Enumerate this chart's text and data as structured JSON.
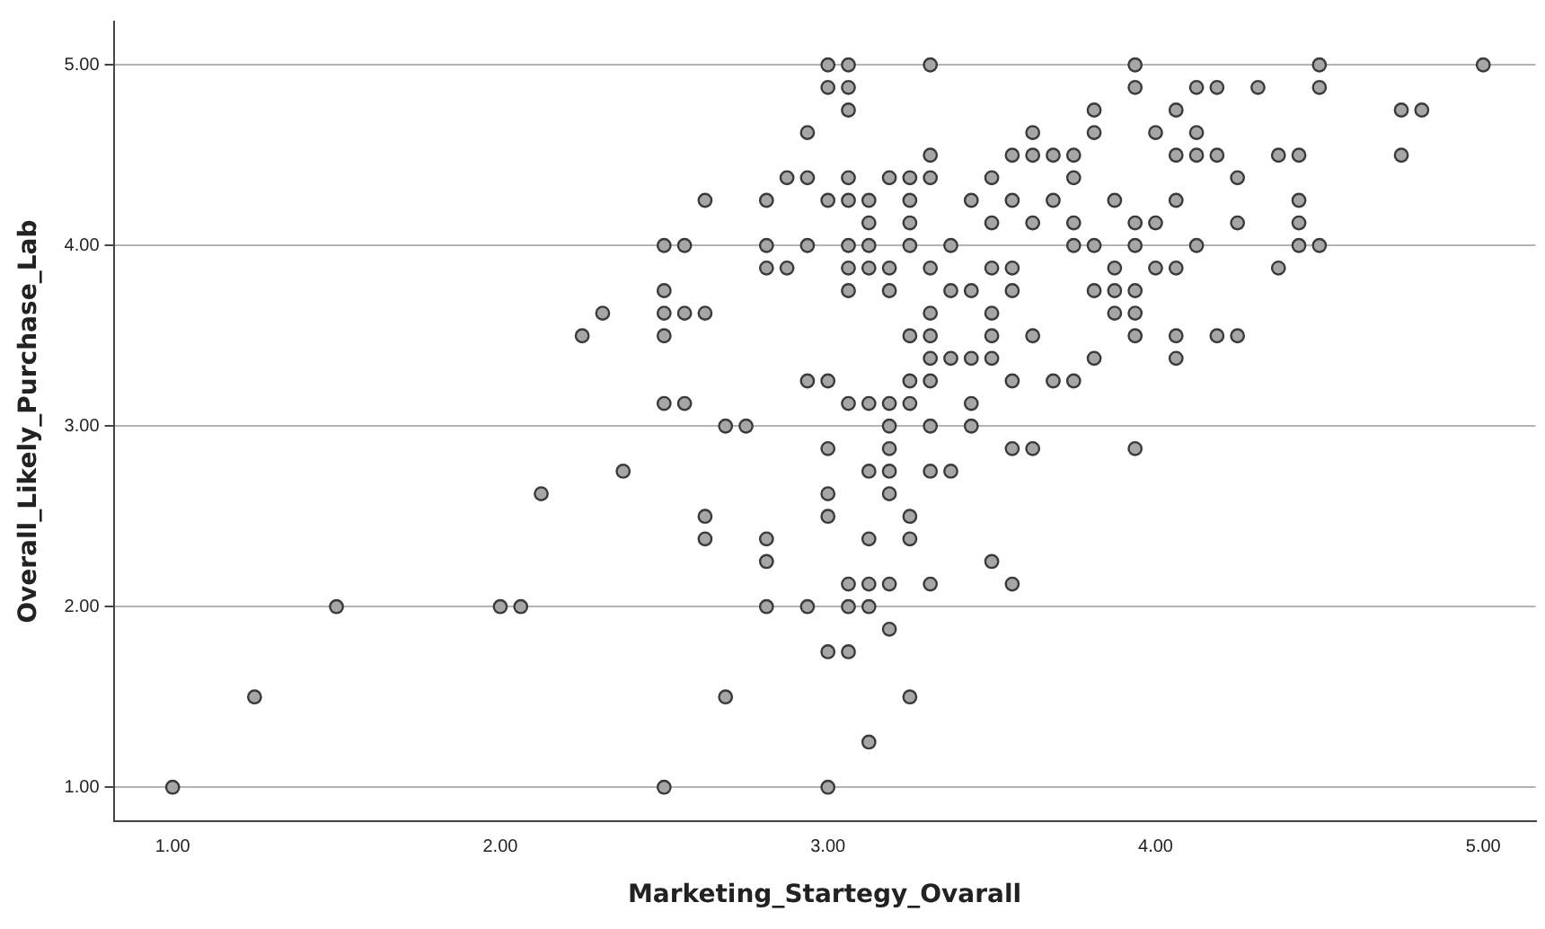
{
  "chart_data": {
    "type": "scatter",
    "xlabel": "Marketing_Startegy_Ovarall",
    "ylabel": "Overall_Likely_Purchase_Lab",
    "xlim": [
      0.82,
      5.16
    ],
    "ylim": [
      0.81,
      5.24
    ],
    "xticks": [
      {
        "value": 1,
        "label": "1.00"
      },
      {
        "value": 2,
        "label": "2.00"
      },
      {
        "value": 3,
        "label": "3.00"
      },
      {
        "value": 4,
        "label": "4.00"
      },
      {
        "value": 5,
        "label": "5.00"
      }
    ],
    "yticks": [
      {
        "value": 1,
        "label": "1.00"
      },
      {
        "value": 2,
        "label": "2.00"
      },
      {
        "value": 3,
        "label": "3.00"
      },
      {
        "value": 4,
        "label": "4.00"
      },
      {
        "value": 5,
        "label": "5.00"
      }
    ],
    "grid": "y",
    "legend": false,
    "marker": "circle",
    "series": [
      {
        "color": "#a6a6a6",
        "x": [
          1,
          1.25,
          1.5,
          2,
          2.0625,
          2.125,
          2.25,
          3,
          3.0625,
          3.3125,
          3,
          3.0625,
          3.0625,
          2.9375,
          3.3125,
          2.875,
          2.9375,
          3.0625,
          3.1875,
          3.25,
          3.3125,
          2.625,
          2.8125,
          3,
          3.0625,
          3.125,
          3.25,
          3.125,
          3.25,
          2.5,
          2.5625,
          2.8125,
          2.9375,
          3.0625,
          3.125,
          3.25,
          3.375,
          2.8125,
          2.875,
          3.0625,
          3.125,
          3.1875,
          3.3125,
          2.5,
          3.0625,
          3.1875,
          3.375,
          2.3125,
          2.5,
          2.5625,
          2.625,
          3.3125,
          2.5,
          3.25,
          3.3125,
          3.3125,
          3.375,
          2.9375,
          3,
          3.25,
          3.3125,
          2.5,
          2.5625,
          3.0625,
          3.125,
          3.1875,
          3.25,
          2.6875,
          2.75,
          3.1875,
          3.3125,
          3,
          3.1875,
          2.375,
          3.125,
          3.1875,
          3.3125,
          3.375,
          3,
          3.1875,
          2.625,
          3,
          3.25,
          2.625,
          2.8125,
          3.125,
          3.25,
          2.8125,
          3.0625,
          3.125,
          3.1875,
          3.3125,
          2.8125,
          2.9375,
          3.0625,
          3.125,
          3.1875,
          3,
          3.0625,
          2.6875,
          3.25,
          3.125,
          2.5,
          3,
          3.9375,
          3.9375,
          4.125,
          4.1875,
          4.3125,
          3.8125,
          4.0625,
          3.625,
          3.8125,
          4,
          4.125,
          3.5625,
          3.625,
          3.6875,
          3.75,
          4.0625,
          4.125,
          4.1875,
          4.375,
          3.5,
          3.75,
          4.25,
          3.4375,
          3.5625,
          3.6875,
          3.875,
          4.0625,
          3.5,
          3.625,
          3.75,
          3.9375,
          4,
          4.25,
          3.75,
          3.8125,
          3.9375,
          4.125,
          3.5,
          3.5625,
          3.875,
          4,
          4.0625,
          4.375,
          3.4375,
          3.5625,
          3.8125,
          3.875,
          3.9375,
          3.5,
          3.875,
          3.9375,
          3.5,
          3.625,
          3.9375,
          4.0625,
          4.1875,
          4.25,
          3.4375,
          3.5,
          3.8125,
          4.0625,
          3.5625,
          3.6875,
          3.75,
          3.4375,
          3.4375,
          3.5625,
          3.625,
          3.9375,
          3.5,
          3.5625,
          4.5,
          5,
          4.5,
          4.75,
          4.8125,
          4.4375,
          4.75,
          4.4375,
          4.4375,
          4.4375,
          4.5
        ],
        "values": [
          1,
          1.5,
          2,
          2,
          2,
          2.625,
          3.5,
          5,
          5,
          5,
          4.875,
          4.875,
          4.75,
          4.625,
          4.5,
          4.375,
          4.375,
          4.375,
          4.375,
          4.375,
          4.375,
          4.25,
          4.25,
          4.25,
          4.25,
          4.25,
          4.25,
          4.125,
          4.125,
          4,
          4,
          4,
          4,
          4,
          4,
          4,
          4,
          3.875,
          3.875,
          3.875,
          3.875,
          3.875,
          3.875,
          3.75,
          3.75,
          3.75,
          3.75,
          3.625,
          3.625,
          3.625,
          3.625,
          3.625,
          3.5,
          3.5,
          3.5,
          3.375,
          3.375,
          3.25,
          3.25,
          3.25,
          3.25,
          3.125,
          3.125,
          3.125,
          3.125,
          3.125,
          3.125,
          3,
          3,
          3,
          3,
          2.875,
          2.875,
          2.75,
          2.75,
          2.75,
          2.75,
          2.75,
          2.625,
          2.625,
          2.5,
          2.5,
          2.5,
          2.375,
          2.375,
          2.375,
          2.375,
          2.25,
          2.125,
          2.125,
          2.125,
          2.125,
          2,
          2,
          2,
          2,
          1.875,
          1.75,
          1.75,
          1.5,
          1.5,
          1.25,
          1,
          1,
          5,
          4.875,
          4.875,
          4.875,
          4.875,
          4.75,
          4.75,
          4.625,
          4.625,
          4.625,
          4.625,
          4.5,
          4.5,
          4.5,
          4.5,
          4.5,
          4.5,
          4.5,
          4.5,
          4.375,
          4.375,
          4.375,
          4.25,
          4.25,
          4.25,
          4.25,
          4.25,
          4.125,
          4.125,
          4.125,
          4.125,
          4.125,
          4.125,
          4,
          4,
          4,
          4,
          3.875,
          3.875,
          3.875,
          3.875,
          3.875,
          3.875,
          3.75,
          3.75,
          3.75,
          3.75,
          3.75,
          3.625,
          3.625,
          3.625,
          3.5,
          3.5,
          3.5,
          3.5,
          3.5,
          3.5,
          3.375,
          3.375,
          3.375,
          3.375,
          3.25,
          3.25,
          3.25,
          3.125,
          3,
          2.875,
          2.875,
          2.875,
          2.25,
          2.125,
          5,
          5,
          4.875,
          4.75,
          4.75,
          4.5,
          4.5,
          4.25,
          4.125,
          4,
          4
        ]
      }
    ]
  }
}
